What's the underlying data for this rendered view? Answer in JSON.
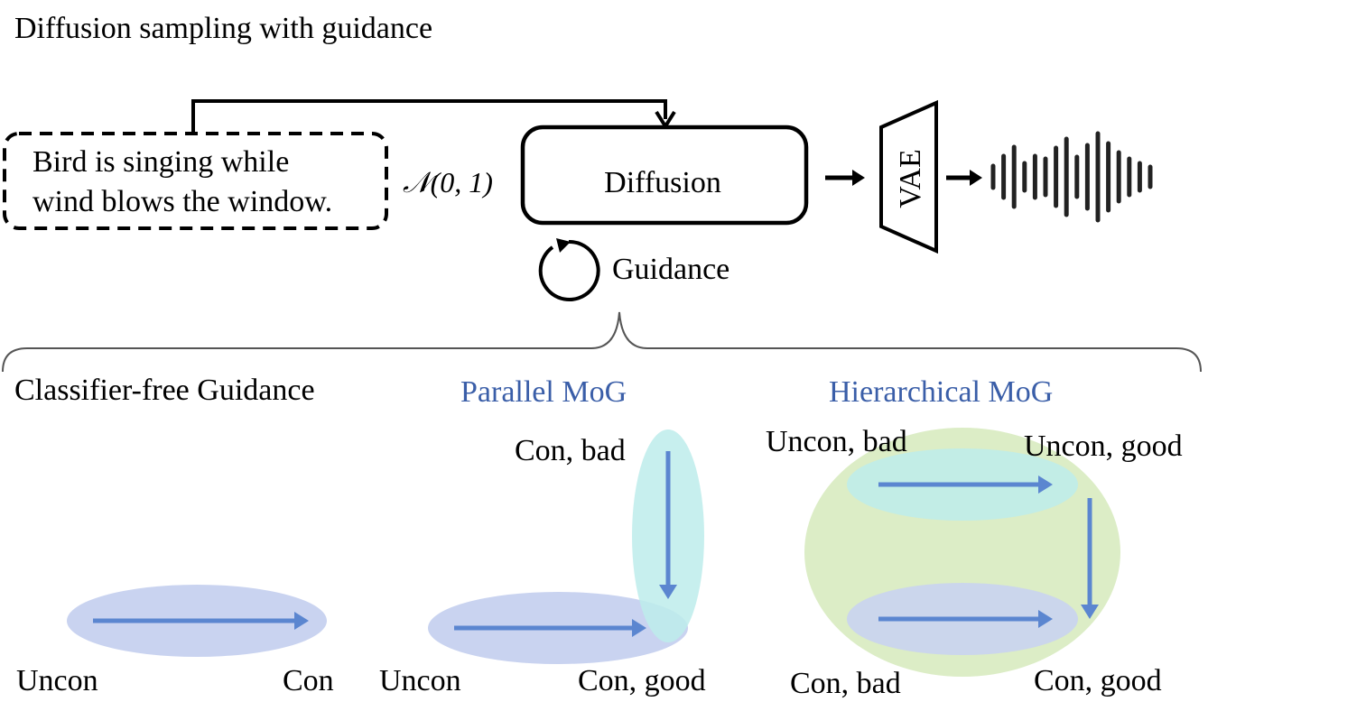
{
  "title": "Diffusion sampling with guidance",
  "prompt": {
    "line1": "Bird is singing while",
    "line2": "wind blows the window."
  },
  "noise_label": "𝒩(0, 1)",
  "diffusion_label": "Diffusion",
  "vae_label": "VAE",
  "guidance_label": "Guidance",
  "panels": {
    "cfg": {
      "title": "Classifier-free Guidance",
      "uncon": "Uncon",
      "con": "Con"
    },
    "parallel": {
      "title": "Parallel MoG",
      "con_bad": "Con, bad",
      "uncon": "Uncon",
      "con_good": "Con, good"
    },
    "hierarchical": {
      "title": "Hierarchical MoG",
      "uncon_bad": "Uncon, bad",
      "uncon_good": "Uncon, good",
      "con_bad": "Con, bad",
      "con_good": "Con, good"
    }
  },
  "colors": {
    "stroke": "#000000",
    "arrow_blue": "#5b86d0",
    "title_blue": "#3a5ea8",
    "ellipse_blue": "#c9d3f0",
    "ellipse_cyan": "#bdeceb",
    "ellipse_green": "#dcedc6",
    "brace": "#555555"
  },
  "waveform": {
    "bar_heights": [
      24,
      46,
      66,
      30,
      46,
      40,
      64,
      84,
      44,
      70,
      96,
      74,
      54,
      40,
      30,
      22
    ]
  }
}
